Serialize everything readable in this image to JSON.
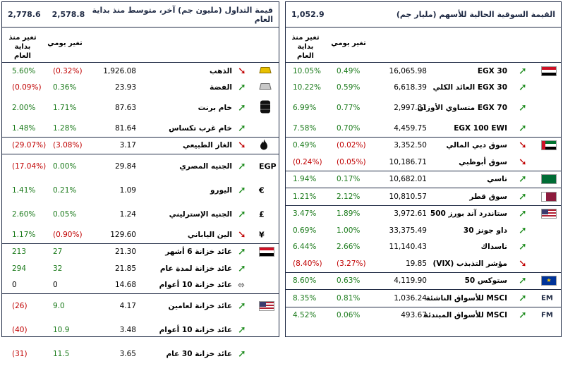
{
  "market_cap": {
    "title": "القيمة السوقية الحالية للأسهم (مليار جم)",
    "value": "1,052.9",
    "col_ytd": "تغير منذ بداية العام",
    "col_day": "تغير يومي",
    "groups": [
      [
        {
          "flag": "egypt",
          "arrow": "up",
          "name": "EGX 30",
          "value": "16,065.98",
          "day": "0.49%",
          "ytd": "10.05%",
          "day_dir": "pos",
          "ytd_dir": "pos"
        },
        {
          "flag": "",
          "arrow": "up",
          "name": "EGX 30 العائد الكلي",
          "value": "6,618.39",
          "day": "0.59%",
          "ytd": "10.22%",
          "day_dir": "pos",
          "ytd_dir": "pos"
        },
        {
          "flag": "",
          "arrow": "up",
          "name": "EGX 70 متساوي الأوزان",
          "value": "2,997.81",
          "day": "0.77%",
          "ytd": "6.99%",
          "day_dir": "pos",
          "ytd_dir": "pos",
          "tall": true
        },
        {
          "flag": "",
          "arrow": "up",
          "name": "EGX 100 EWI",
          "value": "4,459.75",
          "day": "0.70%",
          "ytd": "7.58%",
          "day_dir": "pos",
          "ytd_dir": "pos"
        }
      ],
      [
        {
          "flag": "uae",
          "arrow": "down",
          "name": "سوق دبي المالي",
          "value": "3,352.50",
          "day": "(0.02%)",
          "ytd": "0.49%",
          "day_dir": "neg",
          "ytd_dir": "pos"
        },
        {
          "flag": "",
          "arrow": "down",
          "name": "سوق أبوظبي",
          "value": "10,186.71",
          "day": "(0.05%)",
          "ytd": "(0.24%)",
          "day_dir": "neg",
          "ytd_dir": "neg"
        }
      ],
      [
        {
          "flag": "saudi",
          "arrow": "up",
          "name": "تاسي",
          "value": "10,682.01",
          "day": "0.17%",
          "ytd": "1.94%",
          "day_dir": "pos",
          "ytd_dir": "pos"
        }
      ],
      [
        {
          "flag": "qatar",
          "arrow": "up",
          "name": "سوق قطر",
          "value": "10,810.57",
          "day": "2.12%",
          "ytd": "1.21%",
          "day_dir": "pos",
          "ytd_dir": "pos"
        }
      ],
      [
        {
          "flag": "usa",
          "arrow": "up",
          "name": "ستاندرد آند بورز 500",
          "value": "3,972.61",
          "day": "1.89%",
          "ytd": "3.47%",
          "day_dir": "pos",
          "ytd_dir": "pos"
        },
        {
          "flag": "",
          "arrow": "up",
          "name": "داو جونز 30",
          "value": "33,375.49",
          "day": "1.00%",
          "ytd": "0.69%",
          "day_dir": "pos",
          "ytd_dir": "pos"
        },
        {
          "flag": "",
          "arrow": "up",
          "name": "ناسداك",
          "value": "11,140.43",
          "day": "2.66%",
          "ytd": "6.44%",
          "day_dir": "pos",
          "ytd_dir": "pos"
        },
        {
          "flag": "",
          "arrow": "down",
          "name": "مؤشر التذبذب (VIX)",
          "value": "19.85",
          "day": "(3.27%)",
          "ytd": "(8.40%)",
          "day_dir": "neg",
          "ytd_dir": "neg"
        }
      ],
      [
        {
          "flag": "eu",
          "arrow": "up",
          "name": "ستوكس 50",
          "value": "4,119.90",
          "day": "0.63%",
          "ytd": "8.60%",
          "day_dir": "pos",
          "ytd_dir": "pos"
        }
      ],
      [
        {
          "flag": "EM",
          "arrow": "up",
          "name": "MSCI للأسواق الناشئة",
          "value": "1,036.24",
          "day": "0.81%",
          "ytd": "8.35%",
          "day_dir": "pos",
          "ytd_dir": "pos"
        }
      ],
      [
        {
          "flag": "FM",
          "arrow": "up",
          "name": "MSCI للأسواق المبتدئة",
          "value": "493.67",
          "day": "0.06%",
          "ytd": "4.52%",
          "day_dir": "pos",
          "ytd_dir": "pos"
        }
      ]
    ]
  },
  "trading": {
    "title": "قيمة التداول (مليون جم) آخر، متوسط منذ بداية العام",
    "value_last": "2,578.8",
    "value_avg": "2,778.6",
    "col_ytd": "تغير منذ بداية العام",
    "col_day": "تغير يومي",
    "groups": [
      [
        {
          "icon": "gold",
          "arrow": "down",
          "name": "الذهب",
          "value": "1,926.08",
          "day": "(0.32%)",
          "ytd": "5.60%",
          "day_dir": "neg",
          "ytd_dir": "pos"
        },
        {
          "icon": "silver",
          "arrow": "up",
          "name": "الفضة",
          "value": "23.93",
          "day": "0.36%",
          "ytd": "(0.09%)",
          "day_dir": "pos",
          "ytd_dir": "neg"
        },
        {
          "icon": "oil",
          "arrow": "up",
          "name": "خام برنت",
          "value": "87.63",
          "day": "1.71%",
          "ytd": "2.00%",
          "day_dir": "pos",
          "ytd_dir": "pos",
          "tall": true
        },
        {
          "icon": "",
          "arrow": "up",
          "name": "خام غرب تكساس",
          "value": "81.64",
          "day": "1.28%",
          "ytd": "1.48%",
          "day_dir": "pos",
          "ytd_dir": "pos"
        }
      ],
      [
        {
          "icon": "flame",
          "arrow": "down",
          "name": "الغاز الطبيعي",
          "value": "3.17",
          "day": "(3.08%)",
          "ytd": "(29.07%)",
          "day_dir": "neg",
          "ytd_dir": "neg"
        }
      ],
      [
        {
          "icon": "EGP",
          "arrow": "up",
          "name": "الجنيه المصري",
          "value": "29.84",
          "day": "0.00%",
          "ytd": "(17.04%)",
          "day_dir": "pos",
          "ytd_dir": "neg",
          "tall": true
        },
        {
          "icon": "€",
          "arrow": "up",
          "name": "اليورو",
          "value": "1.09",
          "day": "0.21%",
          "ytd": "1.41%",
          "day_dir": "pos",
          "ytd_dir": "pos",
          "tall": true
        },
        {
          "icon": "£",
          "arrow": "up",
          "name": "الجنيه الإسترليني",
          "value": "1.24",
          "day": "0.05%",
          "ytd": "2.60%",
          "day_dir": "pos",
          "ytd_dir": "pos",
          "tall": true
        },
        {
          "icon": "¥",
          "arrow": "down",
          "name": "الين الياباني",
          "value": "129.60",
          "day": "(0.90%)",
          "ytd": "1.17%",
          "day_dir": "neg",
          "ytd_dir": "pos"
        }
      ],
      [
        {
          "icon": "egypt",
          "arrow": "up",
          "name": "عائد خزانة 6 أشهر",
          "value": "21.30",
          "day": "27",
          "ytd": "213",
          "day_dir": "pos",
          "ytd_dir": "pos"
        },
        {
          "icon": "",
          "arrow": "up",
          "name": "عائد خزانة لمدة عام",
          "value": "21.85",
          "day": "32",
          "ytd": "294",
          "day_dir": "pos",
          "ytd_dir": "pos"
        },
        {
          "icon": "",
          "arrow": "flat",
          "name": "عائد خزانة 10 أعوام",
          "value": "14.68",
          "day": "0",
          "ytd": "0",
          "day_dir": "neu",
          "ytd_dir": "neu"
        }
      ],
      [
        {
          "icon": "usa",
          "arrow": "up",
          "name": "عائد خزانة لعامين",
          "value": "4.17",
          "day": "9.0",
          "ytd": "(26)",
          "day_dir": "pos",
          "ytd_dir": "neg",
          "tall": true
        },
        {
          "icon": "",
          "arrow": "up",
          "name": "عائد خزانة 10 أعوام",
          "value": "3.48",
          "day": "10.9",
          "ytd": "(40)",
          "day_dir": "pos",
          "ytd_dir": "neg",
          "tall": true
        },
        {
          "icon": "",
          "arrow": "up",
          "name": "عائد خزانة 30 عام",
          "value": "3.65",
          "day": "11.5",
          "ytd": "(31)",
          "day_dir": "pos",
          "ytd_dir": "neg",
          "tall": true
        }
      ]
    ]
  }
}
